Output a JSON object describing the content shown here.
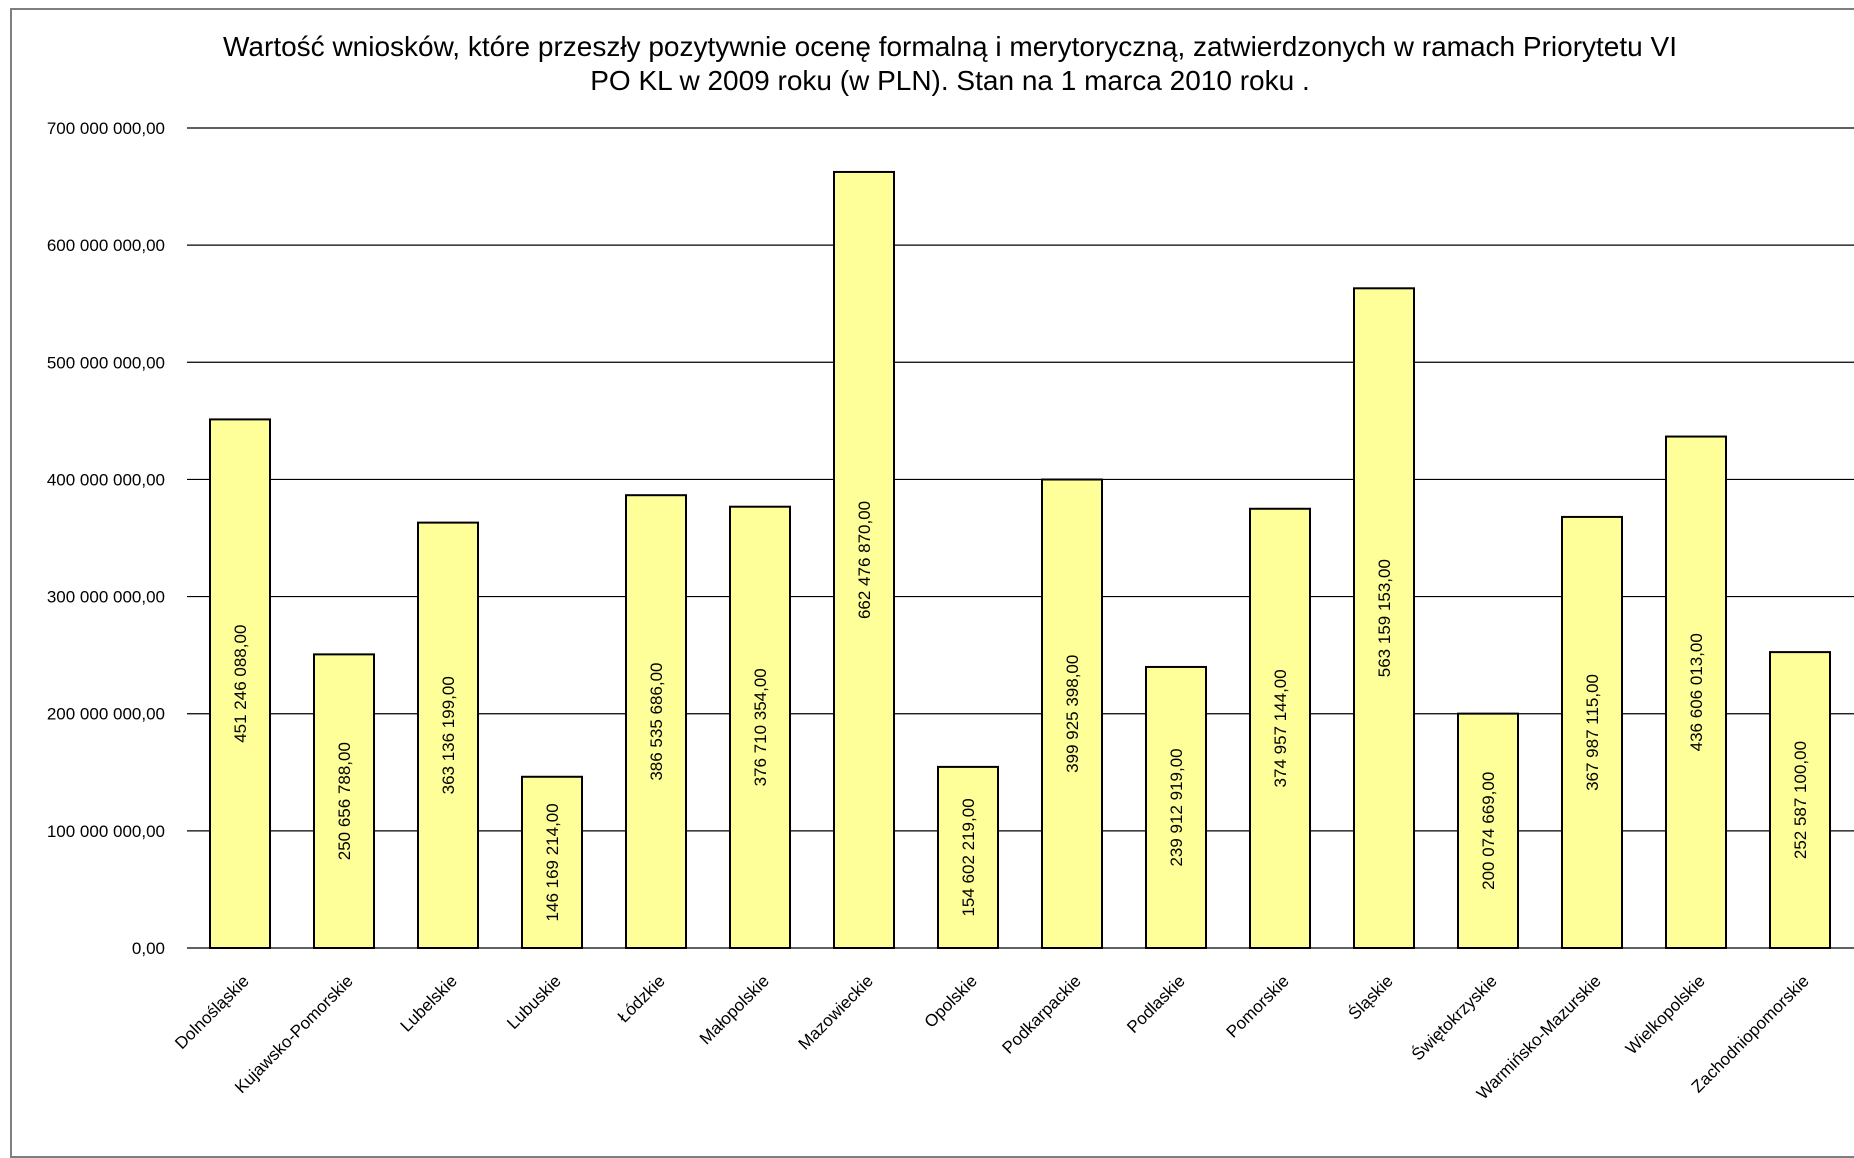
{
  "chart_data": {
    "type": "bar",
    "title_line1": "Wartość wniosków, które przeszły pozytywnie ocenę formalną i merytoryczną, zatwierdzonych w ramach Priorytetu VI",
    "title_line2": "PO KL w 2009 roku (w PLN). Stan na 1 marca 2010 roku .",
    "xlabel": "",
    "ylabel": "",
    "ylim": [
      0,
      700000000
    ],
    "yticks": [
      {
        "value": 0,
        "label": "0,00"
      },
      {
        "value": 100000000,
        "label": "100 000 000,00"
      },
      {
        "value": 200000000,
        "label": "200 000 000,00"
      },
      {
        "value": 300000000,
        "label": "300 000 000,00"
      },
      {
        "value": 400000000,
        "label": "400 000 000,00"
      },
      {
        "value": 500000000,
        "label": "500 000 000,00"
      },
      {
        "value": 600000000,
        "label": "600 000 000,00"
      },
      {
        "value": 700000000,
        "label": "700 000 000,00"
      }
    ],
    "grid": true,
    "legend": "none",
    "bar_color": "#ffff99",
    "categories": [
      "Dolnośląskie",
      "Kujawsko-Pomorskie",
      "Lubelskie",
      "Lubuskie",
      "Łódzkie",
      "Małopolskie",
      "Mazowieckie",
      "Opolskie",
      "Podkarpackie",
      "Podlaskie",
      "Pomorskie",
      "Śląskie",
      "Świętokrzyskie",
      "Warmińsko-Mazurskie",
      "Wielkopolskie",
      "Zachodniopomorskie"
    ],
    "values": [
      451246088,
      250656788,
      363136199,
      146169214,
      386535686,
      376710354,
      662476870,
      154602219,
      399925398,
      239912919,
      374957144,
      563159153,
      200074669,
      367987115,
      436606013,
      252587100
    ],
    "labels": [
      "451 246 088,00",
      "250 656 788,00",
      "363 136 199,00",
      "146 169 214,00",
      "386 535 686,00",
      "376 710 354,00",
      "662 476 870,00",
      "154 602 219,00",
      "399 925 398,00",
      "239 912 919,00",
      "374 957 144,00",
      "563 159 153,00",
      "200 074 669,00",
      "367 987 115,00",
      "436 606 013,00",
      "252 587 100,00"
    ]
  }
}
